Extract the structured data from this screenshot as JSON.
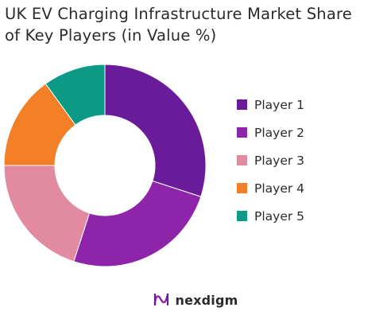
{
  "chart_data": {
    "type": "pie",
    "title_lines": [
      "UK EV Charging Infrastructure Market Share",
      "of Key Players (in Value %)"
    ],
    "categories": [
      "Player 1",
      "Player 2",
      "Player 3",
      "Player 4",
      "Player 5"
    ],
    "values": [
      30,
      25,
      20,
      15,
      10
    ],
    "colors": [
      "#6a1b9a",
      "#8e24aa",
      "#e28aa0",
      "#f37f26",
      "#0a9a86"
    ],
    "legend_placement": "right",
    "donut": true
  },
  "footer": {
    "brand": "nexdigm"
  }
}
